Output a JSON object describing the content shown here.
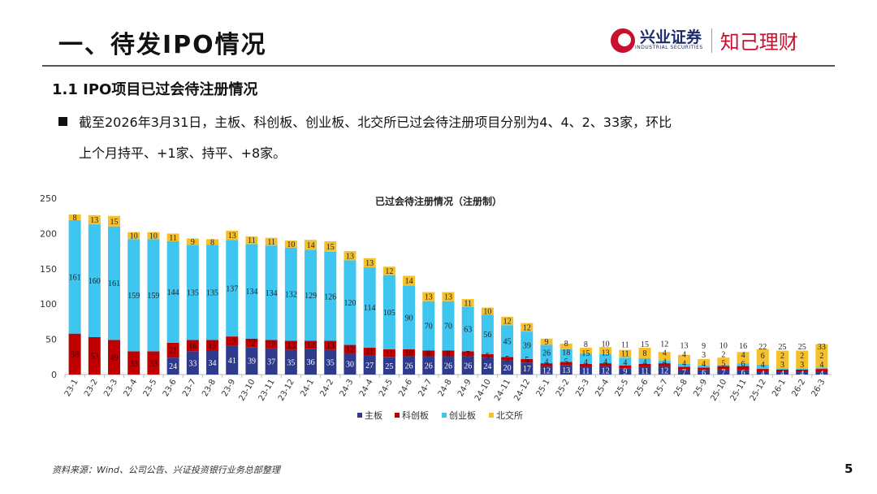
{
  "header": {
    "title": "一、待发IPO情况",
    "logo_cn": "兴业证券",
    "logo_en": "INDUSTRIAL SECURITIES",
    "logo_sub": "知己理财"
  },
  "section": {
    "subtitle": "1.1 IPO项目已过会待注册情况",
    "bullet_line1": "截至2026年3月31日，主板、科创板、创业板、北交所已过会待注册项目分别为4、4、2、33家，环比",
    "bullet_line2": "上个月持平、+1家、持平、+8家。"
  },
  "footer": {
    "source": "资料来源：Wind、公司公告、兴证投资银行业务总部整理",
    "page": "5"
  },
  "chart_data": {
    "type": "bar",
    "stacked": true,
    "title": "已过会待注册情况（注册制）",
    "ylim": [
      0,
      250
    ],
    "yticks": [
      0,
      50,
      100,
      150,
      200,
      250
    ],
    "grid": false,
    "legend_position": "bottom",
    "categories": [
      "23-1",
      "23-2",
      "23-3",
      "23-4",
      "23-5",
      "23-6",
      "23-7",
      "23-8",
      "23-9",
      "23-10",
      "23-11",
      "23-12",
      "24-1",
      "24-2",
      "24-3",
      "24-4",
      "24-5",
      "24-6",
      "24-7",
      "24-8",
      "24-9",
      "24-10",
      "24-11",
      "24-12",
      "25-1",
      "25-2",
      "25-3",
      "25-4",
      "25-5",
      "25-6",
      "25-7",
      "25-8",
      "25-9",
      "25-10",
      "25-11",
      "25-12",
      "26-1",
      "26-2",
      "26-3"
    ],
    "series": [
      {
        "name": "主板",
        "color": "#2e3a8c",
        "values": [
          0,
          0,
          0,
          0,
          0,
          24,
          33,
          34,
          41,
          39,
          37,
          35,
          36,
          35,
          30,
          27,
          25,
          26,
          26,
          26,
          26,
          24,
          20,
          17,
          12,
          13,
          11,
          12,
          9,
          11,
          12,
          7,
          6,
          7,
          6,
          4,
          4,
          4,
          4
        ]
      },
      {
        "name": "科创板",
        "color": "#c00000",
        "values": [
          58,
          53,
          49,
          33,
          33,
          21,
          16,
          15,
          13,
          12,
          12,
          13,
          12,
          13,
          12,
          11,
          11,
          10,
          8,
          8,
          7,
          5,
          5,
          5,
          4,
          5,
          4,
          4,
          4,
          4,
          4,
          4,
          4,
          5,
          6,
          4,
          3,
          3,
          4
        ]
      },
      {
        "name": "创业板",
        "color": "#3ec6f0",
        "values": [
          161,
          160,
          161,
          159,
          159,
          144,
          135,
          135,
          137,
          134,
          134,
          132,
          129,
          126,
          120,
          114,
          105,
          90,
          70,
          70,
          63,
          56,
          45,
          39,
          26,
          18,
          15,
          13,
          11,
          8,
          4,
          4,
          3,
          2,
          4,
          6,
          2,
          2,
          2
        ]
      },
      {
        "name": "北交所",
        "color": "#f5c02c",
        "values": [
          8,
          13,
          15,
          10,
          10,
          11,
          9,
          8,
          13,
          11,
          11,
          10,
          14,
          15,
          13,
          13,
          12,
          14,
          13,
          13,
          11,
          10,
          12,
          12,
          9,
          8,
          8,
          10,
          11,
          15,
          12,
          13,
          9,
          10,
          16,
          22,
          25,
          25,
          33
        ]
      }
    ]
  }
}
